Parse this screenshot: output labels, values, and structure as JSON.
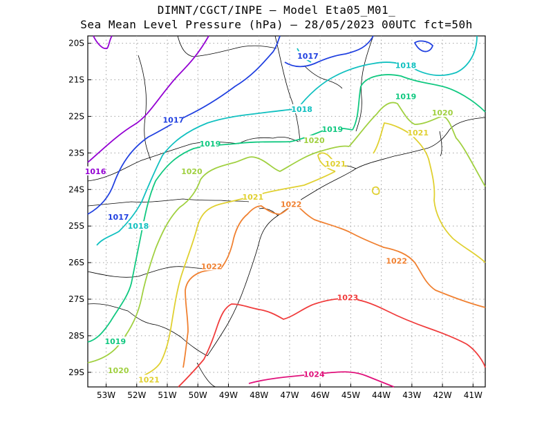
{
  "title_line1": "DIMNT/CGCT/INPE –  Model Eta05_M01_",
  "title_line2": "Sea Mean Level Pressure (hPa) – 28/05/2023 00UTC fct=50h",
  "colors": {
    "c1016": "#9400d3",
    "c1017": "#2040e0",
    "c1018": "#10c0c0",
    "c1019": "#10c880",
    "c1020": "#a0d040",
    "c1021": "#e0d030",
    "c1022": "#f08030",
    "c1023": "#f03c3c",
    "c1024": "#e0107a",
    "coast": "#000000",
    "grid": "#a0a0a0"
  },
  "chart_data": {
    "type": "contour",
    "projection": "lat-lon",
    "xlim": [
      -53.6,
      -40.6
    ],
    "ylim": [
      -29.4,
      -19.8
    ],
    "grid": true,
    "x_ticks": [
      "53W",
      "52W",
      "51W",
      "50W",
      "49W",
      "48W",
      "47W",
      "46W",
      "45W",
      "44W",
      "43W",
      "42W",
      "41W"
    ],
    "y_ticks": [
      "20S",
      "21S",
      "22S",
      "23S",
      "24S",
      "25S",
      "26S",
      "27S",
      "28S",
      "29S"
    ],
    "contour_labels": [
      {
        "text": "1016",
        "color": "c1016",
        "lon": -53.35,
        "lat": -23.5
      },
      {
        "text": "1017",
        "color": "c1017",
        "lon": -52.6,
        "lat": -24.75
      },
      {
        "text": "1017",
        "color": "c1017",
        "lon": -50.8,
        "lat": -22.1
      },
      {
        "text": "1017",
        "color": "c1017",
        "lon": -46.4,
        "lat": -20.35
      },
      {
        "text": "1018",
        "color": "c1018",
        "lon": -51.95,
        "lat": -25.0
      },
      {
        "text": "1018",
        "color": "c1018",
        "lon": -46.6,
        "lat": -21.8
      },
      {
        "text": "1018",
        "color": "c1018",
        "lon": -43.2,
        "lat": -20.6
      },
      {
        "text": "1019",
        "color": "c1019",
        "lon": -52.7,
        "lat": -28.15
      },
      {
        "text": "1019",
        "color": "c1019",
        "lon": -49.6,
        "lat": -22.75
      },
      {
        "text": "1019",
        "color": "c1019",
        "lon": -45.6,
        "lat": -22.35
      },
      {
        "text": "1019",
        "color": "c1019",
        "lon": -43.2,
        "lat": -21.45
      },
      {
        "text": "1020",
        "color": "c1020",
        "lon": -52.6,
        "lat": -28.95
      },
      {
        "text": "1020",
        "color": "c1020",
        "lon": -50.2,
        "lat": -23.5
      },
      {
        "text": "1020",
        "color": "c1020",
        "lon": -46.2,
        "lat": -22.65
      },
      {
        "text": "1020",
        "color": "c1020",
        "lon": -42.0,
        "lat": -21.9
      },
      {
        "text": "1021",
        "color": "c1021",
        "lon": -51.6,
        "lat": -29.2
      },
      {
        "text": "1021",
        "color": "c1021",
        "lon": -48.2,
        "lat": -24.2
      },
      {
        "text": "1021",
        "color": "c1021",
        "lon": -45.5,
        "lat": -23.3
      },
      {
        "text": "1021",
        "color": "c1021",
        "lon": -42.8,
        "lat": -22.45
      },
      {
        "text": "1022",
        "color": "c1022",
        "lon": -49.55,
        "lat": -26.1
      },
      {
        "text": "1022",
        "color": "c1022",
        "lon": -46.95,
        "lat": -24.4
      },
      {
        "text": "1022",
        "color": "c1022",
        "lon": -43.5,
        "lat": -25.95
      },
      {
        "text": "1023",
        "color": "c1023",
        "lon": -45.1,
        "lat": -26.95
      },
      {
        "text": "1024",
        "color": "c1024",
        "lon": -46.2,
        "lat": -29.05
      }
    ]
  }
}
